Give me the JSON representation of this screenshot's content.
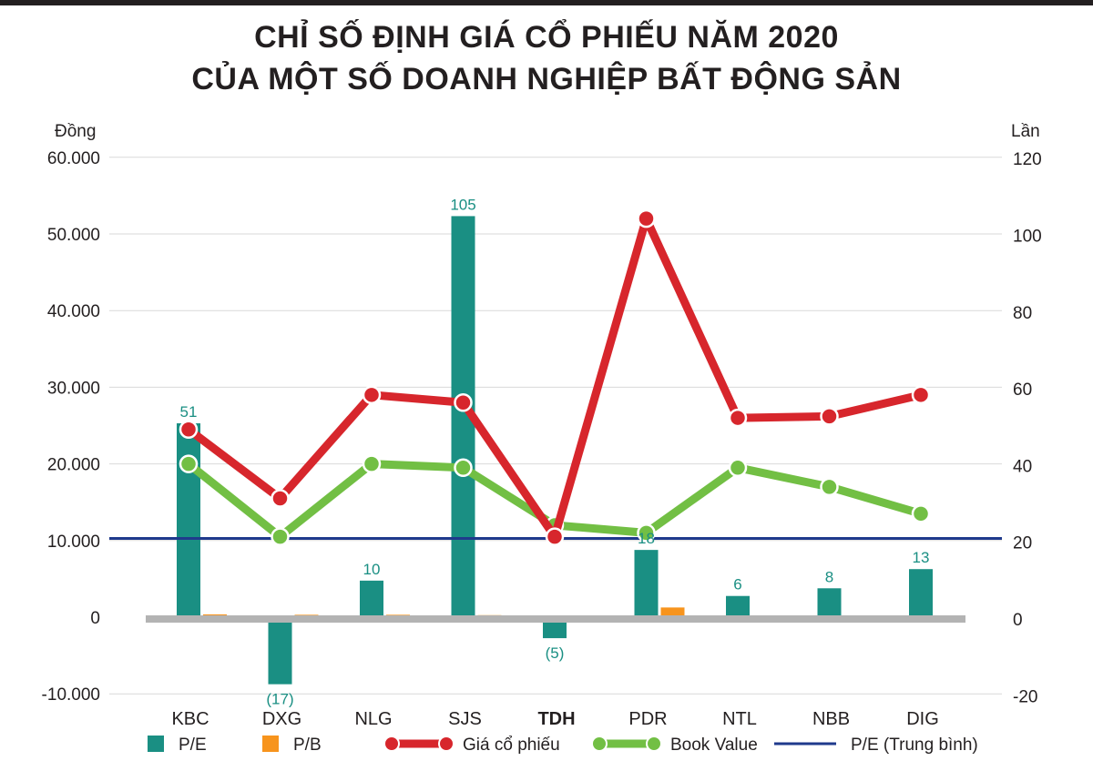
{
  "title": {
    "line1": "CHỈ SỐ ĐỊNH GIÁ CỔ PHIẾU NĂM 2020",
    "line2": "CỦA MỘT SỐ DOANH NGHIỆP BẤT ĐỘNG SẢN"
  },
  "colors": {
    "pe_bar": "#1a8f83",
    "pb_bar": "#f7941d",
    "price_line": "#d7262c",
    "book_value_line": "#72bf44",
    "pe_average_line": "#1f3a8c",
    "zero_baseline": "#b3b3b3",
    "grid": "#d9d9d9"
  },
  "chart_data": {
    "type": "bar",
    "title": "CHỈ SỐ ĐỊNH GIÁ CỔ PHIẾU NĂM 2020 CỦA MỘT SỐ DOANH NGHIỆP BẤT ĐỘNG SẢN",
    "categories": [
      "KBC",
      "DXG",
      "NLG",
      "SJS",
      "TDH",
      "PDR",
      "NTL",
      "NBB",
      "DIG"
    ],
    "bold_category": "TDH",
    "y_left": {
      "label": "Đồng",
      "ylim": [
        -10000,
        60000
      ],
      "ticks": [
        -10000,
        0,
        10000,
        20000,
        30000,
        40000,
        50000,
        60000
      ],
      "tick_labels": [
        "-10.000",
        "0",
        "10.000",
        "20.000",
        "30.000",
        "40.000",
        "50.000",
        "60.000"
      ]
    },
    "y_right": {
      "label": "Lần",
      "ylim": [
        -20,
        120
      ],
      "ticks": [
        -20,
        0,
        20,
        40,
        60,
        80,
        100,
        120
      ],
      "tick_labels": [
        "-20",
        "0",
        "20",
        "40",
        "60",
        "80",
        "100",
        "120"
      ]
    },
    "grid": true,
    "legend_position": "bottom",
    "series": [
      {
        "name": "P/E",
        "kind": "bar",
        "axis": "right",
        "values": [
          51,
          -17,
          10,
          105,
          -5,
          18,
          6,
          8,
          13
        ],
        "data_labels": [
          "51",
          "(17)",
          "10",
          "105",
          "(5)",
          "18",
          "6",
          "8",
          "13"
        ]
      },
      {
        "name": "P/B",
        "kind": "bar",
        "axis": "right",
        "values": [
          1.2,
          1.1,
          1.1,
          1.0,
          0.7,
          3.0,
          0.8,
          0.6,
          0.8
        ]
      },
      {
        "name": "Giá cổ phiếu",
        "kind": "line",
        "axis": "left",
        "values": [
          24500,
          15500,
          29000,
          28000,
          10500,
          52000,
          26000,
          26200,
          29000
        ]
      },
      {
        "name": "Book Value",
        "kind": "line",
        "axis": "left",
        "values": [
          20000,
          10500,
          20000,
          19500,
          12000,
          11000,
          19500,
          17000,
          13500
        ]
      },
      {
        "name": "P/E (Trung bình)",
        "kind": "hline",
        "axis": "right",
        "value": 21
      }
    ]
  },
  "legend": [
    {
      "label": "P/E",
      "kind": "bar",
      "color_key": "pe_bar"
    },
    {
      "label": "P/B",
      "kind": "bar",
      "color_key": "pb_bar"
    },
    {
      "label": "Giá cổ phiếu",
      "kind": "line",
      "color_key": "price_line"
    },
    {
      "label": "Book Value",
      "kind": "line",
      "color_key": "book_value_line"
    },
    {
      "label": "P/E (Trung bình)",
      "kind": "thin-line",
      "color_key": "pe_average_line"
    }
  ]
}
